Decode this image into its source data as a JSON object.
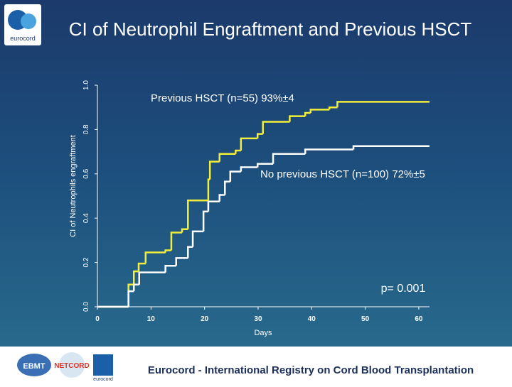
{
  "chart_data": {
    "type": "line",
    "step": true,
    "title": "CI of Neutrophil Engraftment and Previous HSCT",
    "x_label": "Days",
    "y_label": "CI of Neutrophils engraftment",
    "annotation": "p= 0.001",
    "xlim": [
      0,
      62
    ],
    "ylim": [
      0,
      1
    ],
    "xticks": [
      0,
      10,
      20,
      30,
      40,
      50,
      60
    ],
    "yticks": [
      {
        "value": 0,
        "label": "0.0"
      },
      {
        "value": 0.2,
        "label": "0.2"
      },
      {
        "value": 0.4,
        "label": "0.4"
      },
      {
        "value": 0.6,
        "label": "0.6"
      },
      {
        "value": 0.8,
        "label": "0.8"
      },
      {
        "value": 1,
        "label": "1.0"
      }
    ],
    "series": [
      {
        "name": "Previous HSCT (n=55) 93%±4",
        "color": "#f2ee3a",
        "x": [
          0,
          5.8,
          6.8,
          7.7,
          9.0,
          12.7,
          13.8,
          15.8,
          16.9,
          20.7,
          21.0,
          22.8,
          25.8,
          26.8,
          29.9,
          30.9,
          35.9,
          38.8,
          39.8,
          43.3,
          44.8,
          62
        ],
        "values": [
          0,
          0.1,
          0.16,
          0.195,
          0.245,
          0.255,
          0.335,
          0.35,
          0.48,
          0.575,
          0.655,
          0.69,
          0.705,
          0.76,
          0.78,
          0.835,
          0.86,
          0.875,
          0.89,
          0.9,
          0.925,
          0.925
        ]
      },
      {
        "name": "No previous HSCT (n=100) 72%±5",
        "color": "#ffffff",
        "x": [
          0,
          5.8,
          6.8,
          7.8,
          12.7,
          14.7,
          16.9,
          17.8,
          19.8,
          20.7,
          22.8,
          23.8,
          24.8,
          26.8,
          29.9,
          32.8,
          38.8,
          47.8,
          62
        ],
        "values": [
          0,
          0.07,
          0.1,
          0.155,
          0.185,
          0.22,
          0.27,
          0.34,
          0.43,
          0.475,
          0.505,
          0.565,
          0.61,
          0.63,
          0.645,
          0.69,
          0.71,
          0.725,
          0.725
        ]
      }
    ]
  },
  "footer": {
    "text": "Eurocord - International Registry on Cord Blood Transplantation",
    "logos": [
      "eurocord",
      "EBMT",
      "NETCORD",
      "eurocord"
    ]
  }
}
